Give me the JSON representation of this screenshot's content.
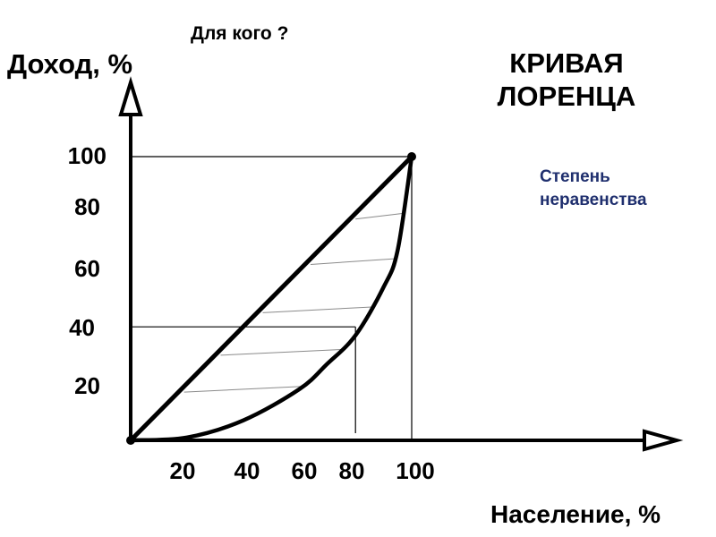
{
  "header": {
    "question": "Для кого ?",
    "title_line1": "КРИВАЯ",
    "title_line2": "ЛОРЕНЦА"
  },
  "annotation": {
    "line1": "Степень",
    "line2": "неравенства",
    "color": "#1f2f6e"
  },
  "chart_data": {
    "type": "line",
    "ylabel": "Доход, %",
    "xlabel": "Население, %",
    "xlim": [
      0,
      100
    ],
    "ylim": [
      0,
      100
    ],
    "x_ticks": [
      20,
      40,
      60,
      80,
      100
    ],
    "y_ticks": [
      20,
      40,
      60,
      80,
      100
    ],
    "grid": false,
    "series": [
      {
        "values": [
          [
            0,
            0
          ],
          [
            100,
            100
          ]
        ]
      },
      {
        "values": [
          [
            0,
            0
          ],
          [
            20,
            1
          ],
          [
            40,
            7
          ],
          [
            60,
            18
          ],
          [
            70,
            27
          ],
          [
            80,
            37
          ],
          [
            90,
            54
          ],
          [
            95,
            67
          ],
          [
            100,
            100
          ]
        ]
      }
    ],
    "guides": [
      {
        "x": 80,
        "y": 40
      },
      {
        "x": 100,
        "y": 100
      }
    ],
    "shaded": "between series 1 and series 2",
    "colors": {
      "line": "#000000",
      "hatch": "#8a8a8a",
      "annotation": "#1f2f6e"
    }
  }
}
